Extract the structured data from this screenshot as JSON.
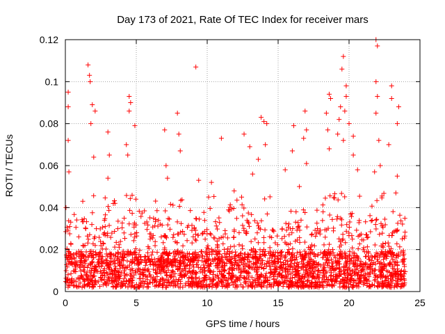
{
  "chart_data": {
    "type": "scatter",
    "title": "Day 173 of 2021, Rate Of TEC Index for receiver mars",
    "xlabel": "GPS time / hours",
    "ylabel": "ROTI / TECUs",
    "xlim": [
      0,
      25
    ],
    "ylim": [
      0,
      0.12
    ],
    "xticks": [
      0,
      5,
      10,
      15,
      20,
      25
    ],
    "xtick_labels": [
      "0",
      "5",
      "10",
      "15",
      "20",
      "25"
    ],
    "yticks": [
      0,
      0.02,
      0.04,
      0.06,
      0.08,
      0.1,
      0.12
    ],
    "ytick_labels": [
      "0",
      "0.02",
      "0.04",
      "0.06",
      "0.08",
      "0.1",
      "0.12"
    ],
    "grid": true,
    "marker": "+",
    "color": "#ff0000",
    "series": [
      {
        "name": "ROTI",
        "x_range": [
          0,
          24
        ],
        "dense_band": {
          "min": 0.002,
          "max": 0.035,
          "typical": 0.012
        },
        "notable_points": [
          {
            "x": 0.2,
            "y": 0.095
          },
          {
            "x": 0.2,
            "y": 0.088
          },
          {
            "x": 0.2,
            "y": 0.072
          },
          {
            "x": 0.25,
            "y": 0.057
          },
          {
            "x": 1.6,
            "y": 0.108
          },
          {
            "x": 1.7,
            "y": 0.103
          },
          {
            "x": 1.75,
            "y": 0.1
          },
          {
            "x": 1.9,
            "y": 0.089
          },
          {
            "x": 1.8,
            "y": 0.08
          },
          {
            "x": 2.0,
            "y": 0.064
          },
          {
            "x": 2.1,
            "y": 0.086
          },
          {
            "x": 3.0,
            "y": 0.076
          },
          {
            "x": 3.1,
            "y": 0.065
          },
          {
            "x": 3.0,
            "y": 0.054
          },
          {
            "x": 3.5,
            "y": 0.042
          },
          {
            "x": 4.5,
            "y": 0.093
          },
          {
            "x": 4.6,
            "y": 0.09
          },
          {
            "x": 4.5,
            "y": 0.086
          },
          {
            "x": 4.4,
            "y": 0.065
          },
          {
            "x": 4.9,
            "y": 0.079
          },
          {
            "x": 4.3,
            "y": 0.07
          },
          {
            "x": 7.0,
            "y": 0.077
          },
          {
            "x": 7.1,
            "y": 0.06
          },
          {
            "x": 7.2,
            "y": 0.054
          },
          {
            "x": 7.9,
            "y": 0.085
          },
          {
            "x": 8.0,
            "y": 0.075
          },
          {
            "x": 8.1,
            "y": 0.067
          },
          {
            "x": 9.2,
            "y": 0.107
          },
          {
            "x": 9.4,
            "y": 0.053
          },
          {
            "x": 10.3,
            "y": 0.052
          },
          {
            "x": 10.1,
            "y": 0.045
          },
          {
            "x": 11.0,
            "y": 0.073
          },
          {
            "x": 11.9,
            "y": 0.048
          },
          {
            "x": 12.6,
            "y": 0.075
          },
          {
            "x": 13.0,
            "y": 0.069
          },
          {
            "x": 13.2,
            "y": 0.056
          },
          {
            "x": 13.8,
            "y": 0.083
          },
          {
            "x": 14.0,
            "y": 0.081
          },
          {
            "x": 14.2,
            "y": 0.08
          },
          {
            "x": 13.6,
            "y": 0.063
          },
          {
            "x": 14.1,
            "y": 0.07
          },
          {
            "x": 15.5,
            "y": 0.058
          },
          {
            "x": 16.1,
            "y": 0.079
          },
          {
            "x": 16.0,
            "y": 0.067
          },
          {
            "x": 16.9,
            "y": 0.086
          },
          {
            "x": 17.0,
            "y": 0.077
          },
          {
            "x": 16.8,
            "y": 0.073
          },
          {
            "x": 17.0,
            "y": 0.061
          },
          {
            "x": 16.5,
            "y": 0.05
          },
          {
            "x": 18.6,
            "y": 0.094
          },
          {
            "x": 18.7,
            "y": 0.092
          },
          {
            "x": 18.4,
            "y": 0.085
          },
          {
            "x": 18.5,
            "y": 0.077
          },
          {
            "x": 18.6,
            "y": 0.068
          },
          {
            "x": 19.4,
            "y": 0.088
          },
          {
            "x": 19.3,
            "y": 0.082
          },
          {
            "x": 19.2,
            "y": 0.075
          },
          {
            "x": 19.6,
            "y": 0.112
          },
          {
            "x": 19.5,
            "y": 0.106
          },
          {
            "x": 19.8,
            "y": 0.098
          },
          {
            "x": 19.8,
            "y": 0.093
          },
          {
            "x": 19.7,
            "y": 0.086
          },
          {
            "x": 20.0,
            "y": 0.08
          },
          {
            "x": 19.6,
            "y": 0.072
          },
          {
            "x": 20.3,
            "y": 0.065
          },
          {
            "x": 20.6,
            "y": 0.058
          },
          {
            "x": 20.3,
            "y": 0.074
          },
          {
            "x": 21.9,
            "y": 0.12
          },
          {
            "x": 22.0,
            "y": 0.117
          },
          {
            "x": 21.9,
            "y": 0.1
          },
          {
            "x": 22.0,
            "y": 0.093
          },
          {
            "x": 21.9,
            "y": 0.085
          },
          {
            "x": 22.1,
            "y": 0.072
          },
          {
            "x": 22.2,
            "y": 0.06
          },
          {
            "x": 21.8,
            "y": 0.057
          },
          {
            "x": 22.8,
            "y": 0.07
          },
          {
            "x": 23.0,
            "y": 0.098
          },
          {
            "x": 23.0,
            "y": 0.092
          },
          {
            "x": 23.5,
            "y": 0.088
          },
          {
            "x": 23.4,
            "y": 0.08
          },
          {
            "x": 23.4,
            "y": 0.055
          },
          {
            "x": 23.3,
            "y": 0.047
          }
        ]
      }
    ]
  }
}
